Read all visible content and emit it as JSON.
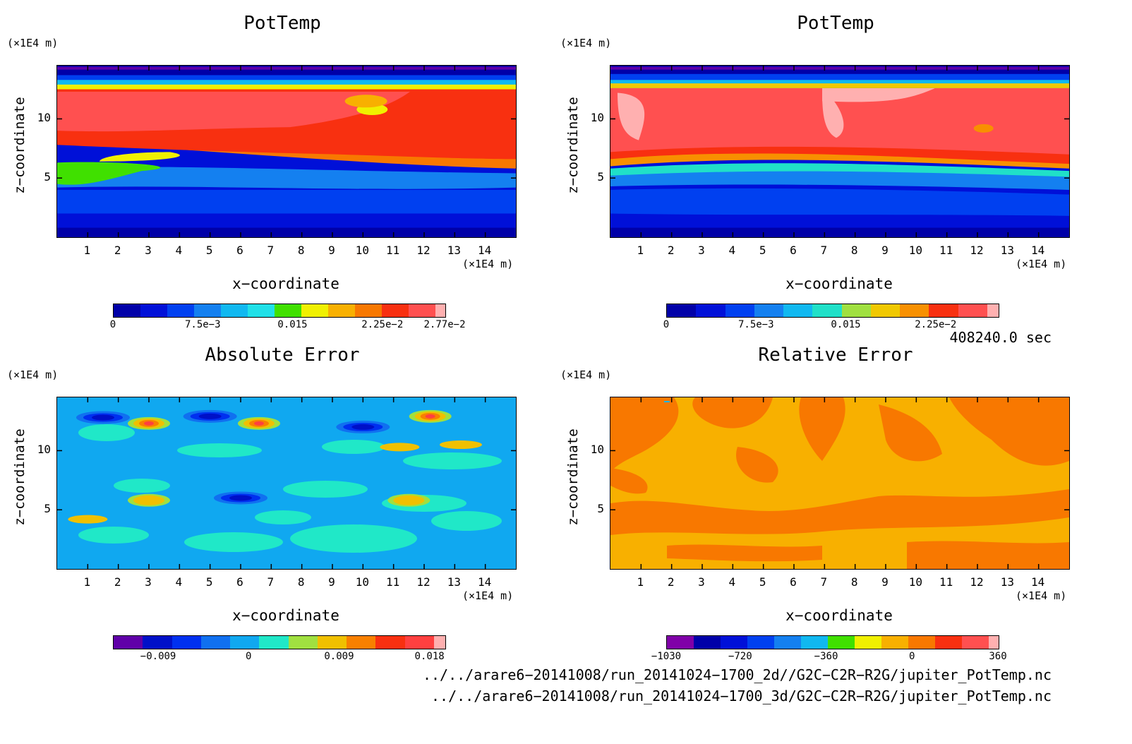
{
  "panels": [
    {
      "title": "PotTemp",
      "z_unit": "(×1E4 m)",
      "z_label": "z−coordinate",
      "z_ticks": [
        "10",
        "5"
      ],
      "x_ticks": [
        "1",
        "2",
        "3",
        "4",
        "5",
        "6",
        "7",
        "8",
        "9",
        "10",
        "11",
        "12",
        "13",
        "14"
      ],
      "x_unit": "(×1E4 m)",
      "x_label": "x−coordinate",
      "colorbar_colors": [
        "#0000a8",
        "#0010d8",
        "#0040f0",
        "#1480f0",
        "#10b8f0",
        "#20e0e8",
        "#40e000",
        "#f0f000",
        "#f8b000",
        "#f87800",
        "#f83010",
        "#ff5050",
        "#ffb0b0"
      ],
      "colorbar_labels": [
        "0",
        "7.5e−3",
        "0.015",
        "2.25e−2",
        "2.77e−2"
      ]
    },
    {
      "title": "PotTemp",
      "z_unit": "(×1E4 m)",
      "z_label": "z−coordinate",
      "z_ticks": [
        "10",
        "5"
      ],
      "x_ticks": [
        "1",
        "2",
        "3",
        "4",
        "5",
        "6",
        "7",
        "8",
        "9",
        "10",
        "11",
        "12",
        "13",
        "14"
      ],
      "x_unit": "(×1E4 m)",
      "x_label": "x−coordinate",
      "colorbar_colors": [
        "#0000a8",
        "#0010d8",
        "#0040f0",
        "#1480f0",
        "#10b8f0",
        "#20e0c8",
        "#a0e040",
        "#f0c800",
        "#f89000",
        "#f83010",
        "#ff5050",
        "#ffb0b0"
      ],
      "colorbar_labels": [
        "0",
        "7.5e−3",
        "0.015",
        "2.25e−2"
      ]
    },
    {
      "title": "Absolute Error",
      "z_unit": "(×1E4 m)",
      "z_label": "z−coordinate",
      "z_ticks": [
        "10",
        "5"
      ],
      "x_ticks": [
        "1",
        "2",
        "3",
        "4",
        "5",
        "6",
        "7",
        "8",
        "9",
        "10",
        "11",
        "12",
        "13",
        "14"
      ],
      "x_unit": "(×1E4 m)",
      "x_label": "x−coordinate",
      "colorbar_colors": [
        "#6000a8",
        "#0010c8",
        "#0030f0",
        "#1070f0",
        "#10a8f0",
        "#20e8c8",
        "#a0e040",
        "#f0c000",
        "#f88000",
        "#f83010",
        "#ff4040",
        "#ffb0b0"
      ],
      "colorbar_labels": [
        "−0.009",
        "0",
        "0.009",
        "0.018"
      ]
    },
    {
      "title": "Relative Error",
      "z_unit": "(×1E4 m)",
      "z_label": "z−coordinate",
      "z_ticks": [
        "10",
        "5"
      ],
      "x_ticks": [
        "1",
        "2",
        "3",
        "4",
        "5",
        "6",
        "7",
        "8",
        "9",
        "10",
        "11",
        "12",
        "13",
        "14"
      ],
      "x_unit": "(×1E4 m)",
      "x_label": "x−coordinate",
      "colorbar_colors": [
        "#8000a8",
        "#0000a8",
        "#0010d8",
        "#0040f0",
        "#1480f0",
        "#10b8f0",
        "#40e000",
        "#f0f000",
        "#f8b000",
        "#f87800",
        "#f83010",
        "#ff5050",
        "#ffb0b0"
      ],
      "colorbar_labels": [
        "−1030",
        "−720",
        "−360",
        "0",
        "360"
      ]
    }
  ],
  "time_label": "408240.0 sec",
  "file_paths": [
    "../../arare6−20141008/run_20141024−1700_2d//G2C−C2R−R2G/jupiter_PotTemp.nc",
    "../../arare6−20141008/run_20141024−1700_3d/G2C−C2R−R2G/jupiter_PotTemp.nc"
  ],
  "chart_data": [
    {
      "type": "heatmap",
      "title": "PotTemp",
      "xlabel": "x−coordinate",
      "x_unit": "(×1E4 m)",
      "xlim": [
        0,
        15
      ],
      "ylabel": "z−coordinate",
      "y_unit": "(×1E4 m)",
      "ylim": [
        0,
        14.5
      ],
      "colorbar": {
        "range": [
          0,
          0.0277
        ],
        "ticks": [
          0,
          0.0075,
          0.015,
          0.0225,
          0.0277
        ]
      },
      "layers_z": [
        {
          "from": 0,
          "to": 2.0,
          "value": 0.001
        },
        {
          "from": 2.0,
          "to": 4.0,
          "value": 0.003
        },
        {
          "from": 4.0,
          "to": 5.5,
          "value": 0.006
        },
        {
          "from": 5.5,
          "to": 6.5,
          "value": 0.017
        },
        {
          "from": 6.5,
          "to": 7.5,
          "value": 0.021
        },
        {
          "from": 7.5,
          "to": 12.5,
          "value": 0.025
        },
        {
          "from": 12.5,
          "to": 13.3,
          "value": 0.02
        },
        {
          "from": 13.3,
          "to": 14.5,
          "value": 0.001
        }
      ]
    },
    {
      "type": "heatmap",
      "title": "PotTemp",
      "xlabel": "x−coordinate",
      "x_unit": "(×1E4 m)",
      "xlim": [
        0,
        15
      ],
      "ylabel": "z−coordinate",
      "y_unit": "(×1E4 m)",
      "ylim": [
        0,
        14.5
      ],
      "colorbar": {
        "range": [
          0,
          0.0277
        ],
        "ticks": [
          0,
          0.0075,
          0.015,
          0.0225
        ]
      },
      "layers_z": [
        {
          "from": 0,
          "to": 2.0,
          "value": 0.001
        },
        {
          "from": 2.0,
          "to": 4.5,
          "value": 0.004
        },
        {
          "from": 4.5,
          "to": 5.8,
          "value": 0.009
        },
        {
          "from": 5.8,
          "to": 6.8,
          "value": 0.021
        },
        {
          "from": 6.8,
          "to": 12.8,
          "value": 0.026
        },
        {
          "from": 12.8,
          "to": 13.4,
          "value": 0.02
        },
        {
          "from": 13.4,
          "to": 14.5,
          "value": 0.001
        }
      ]
    },
    {
      "type": "heatmap",
      "title": "Absolute Error",
      "xlabel": "x−coordinate",
      "x_unit": "(×1E4 m)",
      "xlim": [
        0,
        15
      ],
      "ylabel": "z−coordinate",
      "y_unit": "(×1E4 m)",
      "ylim": [
        0,
        14.5
      ],
      "colorbar": {
        "range": [
          -0.0135,
          0.0195
        ],
        "ticks": [
          -0.009,
          0,
          0.009,
          0.018
        ]
      },
      "background_value": -0.002,
      "features": [
        {
          "x": 1.5,
          "z": 12.8,
          "value": -0.009
        },
        {
          "x": 3.0,
          "z": 12.3,
          "value": 0.012
        },
        {
          "x": 5.0,
          "z": 12.9,
          "value": -0.009
        },
        {
          "x": 6.6,
          "z": 12.3,
          "value": 0.012
        },
        {
          "x": 10.0,
          "z": 12.0,
          "value": -0.009
        },
        {
          "x": 12.2,
          "z": 12.9,
          "value": 0.015
        },
        {
          "x": 3.0,
          "z": 5.8,
          "value": 0.006
        },
        {
          "x": 6.0,
          "z": 6.0,
          "value": -0.009
        },
        {
          "x": 11.5,
          "z": 5.8,
          "value": 0.006
        }
      ]
    },
    {
      "type": "heatmap",
      "title": "Relative Error",
      "xlabel": "x−coordinate",
      "x_unit": "(×1E4 m)",
      "xlim": [
        0,
        15
      ],
      "ylabel": "z−coordinate",
      "y_unit": "(×1E4 m)",
      "ylim": [
        0,
        14.5
      ],
      "colorbar": {
        "range": [
          -1030,
          360
        ],
        "ticks": [
          -1030,
          -720,
          -360,
          0,
          360
        ]
      },
      "background_value": -60,
      "regions_value": 30
    }
  ]
}
